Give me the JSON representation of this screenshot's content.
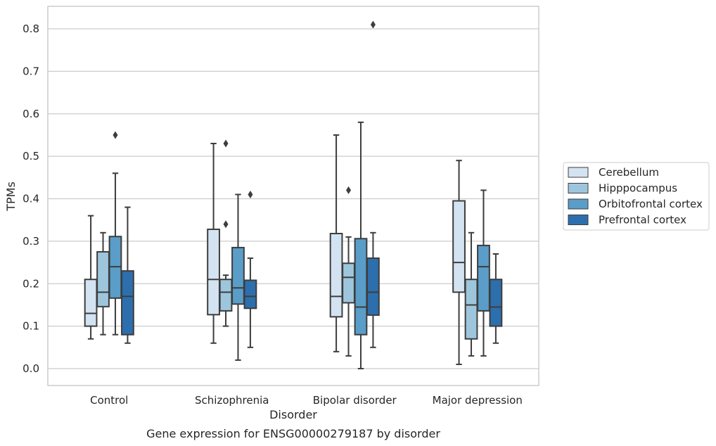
{
  "chart_data": {
    "type": "box",
    "title": "Gene expression for ENSG00000279187 by disorder",
    "xlabel": "Disorder",
    "ylabel": "TPMs",
    "ylim": [
      -0.04,
      0.85
    ],
    "yticks": [
      0.0,
      0.1,
      0.2,
      0.3,
      0.4,
      0.5,
      0.6,
      0.7,
      0.8
    ],
    "ytick_labels": [
      "0.0",
      "0.1",
      "0.2",
      "0.3",
      "0.4",
      "0.5",
      "0.6",
      "0.7",
      "0.8"
    ],
    "grid": "horizontal",
    "legend_placement": "right",
    "categories": [
      "Control",
      "Schizophrenia",
      "Bipolar disorder",
      "Major depression"
    ],
    "series": [
      {
        "name": "Cerebellum",
        "color": "#d4e3f1",
        "boxes": [
          {
            "whislo": 0.07,
            "q1": 0.1,
            "med": 0.13,
            "q3": 0.21,
            "whishi": 0.36,
            "fliers": []
          },
          {
            "whislo": 0.06,
            "q1": 0.127,
            "med": 0.21,
            "q3": 0.328,
            "whishi": 0.53,
            "fliers": []
          },
          {
            "whislo": 0.04,
            "q1": 0.122,
            "med": 0.17,
            "q3": 0.318,
            "whishi": 0.55,
            "fliers": []
          },
          {
            "whislo": 0.01,
            "q1": 0.18,
            "med": 0.25,
            "q3": 0.395,
            "whishi": 0.49,
            "fliers": []
          }
        ]
      },
      {
        "name": "Hipppocampus",
        "color": "#9dc6dd",
        "boxes": [
          {
            "whislo": 0.08,
            "q1": 0.146,
            "med": 0.18,
            "q3": 0.275,
            "whishi": 0.32,
            "fliers": []
          },
          {
            "whislo": 0.1,
            "q1": 0.136,
            "med": 0.18,
            "q3": 0.21,
            "whishi": 0.22,
            "fliers": [
              0.34,
              0.53
            ]
          },
          {
            "whislo": 0.03,
            "q1": 0.155,
            "med": 0.215,
            "q3": 0.248,
            "whishi": 0.31,
            "fliers": [
              0.42
            ]
          },
          {
            "whislo": 0.03,
            "q1": 0.07,
            "med": 0.15,
            "q3": 0.21,
            "whishi": 0.32,
            "fliers": []
          }
        ]
      },
      {
        "name": "Orbitofrontal cortex",
        "color": "#5a9dc8",
        "boxes": [
          {
            "whislo": 0.08,
            "q1": 0.166,
            "med": 0.24,
            "q3": 0.311,
            "whishi": 0.46,
            "fliers": [
              0.55
            ]
          },
          {
            "whislo": 0.02,
            "q1": 0.152,
            "med": 0.19,
            "q3": 0.285,
            "whishi": 0.41,
            "fliers": []
          },
          {
            "whislo": 0.0,
            "q1": 0.08,
            "med": 0.145,
            "q3": 0.306,
            "whishi": 0.58,
            "fliers": []
          },
          {
            "whislo": 0.03,
            "q1": 0.136,
            "med": 0.24,
            "q3": 0.29,
            "whishi": 0.42,
            "fliers": []
          }
        ]
      },
      {
        "name": "Prefrontal cortex",
        "color": "#2d6fad",
        "boxes": [
          {
            "whislo": 0.06,
            "q1": 0.08,
            "med": 0.17,
            "q3": 0.23,
            "whishi": 0.38,
            "fliers": []
          },
          {
            "whislo": 0.05,
            "q1": 0.142,
            "med": 0.17,
            "q3": 0.208,
            "whishi": 0.26,
            "fliers": [
              0.41
            ]
          },
          {
            "whislo": 0.05,
            "q1": 0.126,
            "med": 0.18,
            "q3": 0.26,
            "whishi": 0.32,
            "fliers": [
              0.81
            ]
          },
          {
            "whislo": 0.06,
            "q1": 0.1,
            "med": 0.145,
            "q3": 0.21,
            "whishi": 0.27,
            "fliers": []
          }
        ]
      }
    ]
  }
}
